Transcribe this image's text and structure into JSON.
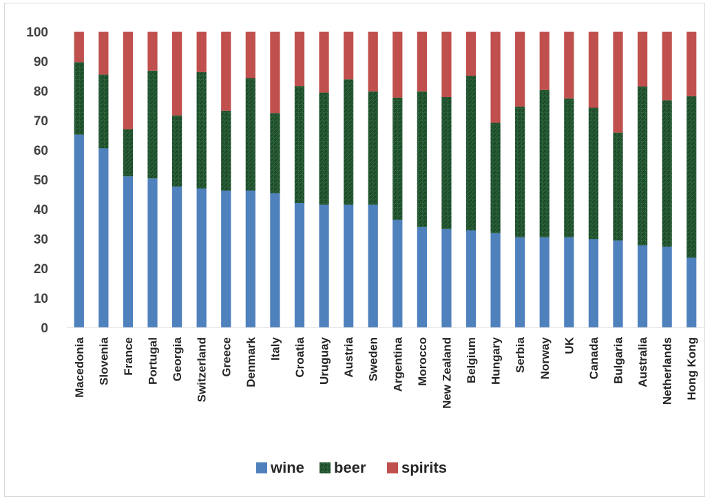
{
  "chart_data": {
    "type": "bar",
    "stacked": true,
    "title": "",
    "xlabel": "",
    "ylabel": "",
    "ylim": [
      0,
      100
    ],
    "yticks": [
      0,
      10,
      20,
      30,
      40,
      50,
      60,
      70,
      80,
      90,
      100
    ],
    "grid": false,
    "legend_position": "bottom",
    "categories": [
      "Macedonia",
      "Slovenia",
      "France",
      "Portugal",
      "Georgia",
      "Switzerland",
      "Greece",
      "Denmark",
      "Italy",
      "Croatia",
      "Uruguay",
      "Austria",
      "Sweden",
      "Argentina",
      "Morocco",
      "New Zealand",
      "Belgium",
      "Hungary",
      "Serbia",
      "Norway",
      "UK",
      "Canada",
      "Bulgaria",
      "Australia",
      "Netherlands",
      "Hong Kong"
    ],
    "series": [
      {
        "name": "wine",
        "color": "#4f81bd",
        "values": [
          65.2,
          60.6,
          51.1,
          50.4,
          47.6,
          47.0,
          46.3,
          46.3,
          45.4,
          42.1,
          41.5,
          41.5,
          41.5,
          36.4,
          34.0,
          33.3,
          32.9,
          31.9,
          30.5,
          30.5,
          30.5,
          29.9,
          29.4,
          27.8,
          27.3,
          23.6
        ]
      },
      {
        "name": "beer",
        "color": "#1e4d2b",
        "values": [
          24.5,
          24.9,
          15.9,
          36.4,
          24.1,
          39.3,
          27.0,
          38.0,
          27.1,
          39.5,
          37.9,
          42.4,
          38.3,
          41.3,
          45.8,
          44.6,
          52.2,
          37.3,
          44.2,
          49.8,
          46.9,
          44.4,
          36.5,
          53.7,
          49.5,
          54.6
        ]
      },
      {
        "name": "spirits",
        "color": "#c0504d",
        "values": [
          10.3,
          14.5,
          33.0,
          13.2,
          28.3,
          13.7,
          26.7,
          15.7,
          27.5,
          18.4,
          20.6,
          16.1,
          20.2,
          22.3,
          20.2,
          22.1,
          14.9,
          30.8,
          25.3,
          19.7,
          22.6,
          25.7,
          34.1,
          18.5,
          23.2,
          21.8
        ]
      }
    ]
  }
}
